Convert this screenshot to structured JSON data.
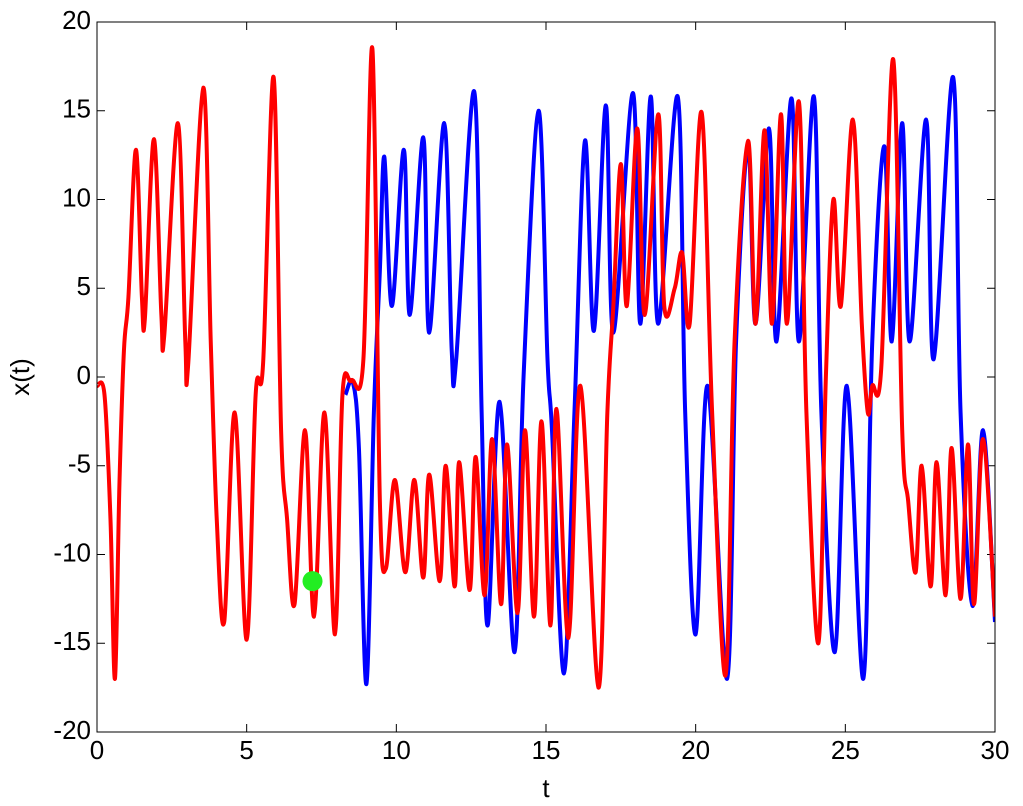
{
  "chart_data": {
    "type": "line",
    "xlabel": "t",
    "ylabel": "x(t)",
    "xlim": [
      0,
      30
    ],
    "ylim": [
      -20,
      20
    ],
    "xticks": [
      0,
      5,
      10,
      15,
      20,
      25,
      30
    ],
    "yticks": [
      -20,
      -15,
      -10,
      -5,
      0,
      5,
      10,
      15,
      20
    ],
    "series": [
      {
        "color": "#0000ff",
        "x": [
          8.3,
          8.55,
          8.75,
          9.0,
          9.25,
          9.45,
          9.6,
          9.85,
          10.25,
          10.45,
          10.9,
          11.1,
          11.6,
          11.85,
          12.0,
          12.6,
          12.85,
          13.05,
          13.45,
          13.95,
          14.25,
          14.75,
          15.05,
          15.2,
          15.6,
          15.95,
          16.3,
          16.6,
          17.0,
          17.25,
          17.9,
          18.15,
          18.5,
          18.75,
          19.4,
          19.65,
          20.0,
          20.4,
          21.05,
          21.35,
          21.75,
          22.0,
          22.45,
          22.7,
          23.2,
          23.45,
          23.95,
          24.2,
          24.65,
          25.05,
          25.6,
          25.9,
          26.3,
          26.55,
          26.9,
          27.15,
          27.7,
          27.95,
          28.6,
          28.85,
          29.25,
          29.6,
          30
        ],
        "values": [
          -1,
          -0.3,
          -4,
          -17.3,
          -2,
          6,
          12.4,
          4,
          12.8,
          3.5,
          13.5,
          2.5,
          14.3,
          1.5,
          1,
          16.1,
          -2,
          -14,
          -1.4,
          -15.5,
          0,
          15,
          1,
          -3,
          -16.7,
          -2,
          13.3,
          2.6,
          15.3,
          2.5,
          16,
          3,
          15.8,
          3,
          15.8,
          -2,
          -14.5,
          -0.5,
          -17,
          2,
          13,
          3,
          14,
          2,
          15.7,
          2,
          15.8,
          -2,
          -15.5,
          -0.5,
          -17,
          2,
          13,
          2,
          14.3,
          2,
          14.5,
          1,
          16.9,
          -2,
          -12.9,
          -3,
          -13.8
        ]
      },
      {
        "color": "#ff0000",
        "x": [
          0,
          0.25,
          0.45,
          0.6,
          0.75,
          0.9,
          1.05,
          1.3,
          1.5,
          1.6,
          1.9,
          2.15,
          2.25,
          2.7,
          2.95,
          3.05,
          3.55,
          3.8,
          4.0,
          4.25,
          4.6,
          5.0,
          5.3,
          5.55,
          5.9,
          6.15,
          6.35,
          6.6,
          6.95,
          7.25,
          7.6,
          7.95,
          8.2,
          8.5,
          8.9,
          9.2,
          9.45,
          9.65,
          9.95,
          10.3,
          10.6,
          10.9,
          11.1,
          11.45,
          11.65,
          11.95,
          12.1,
          12.45,
          12.65,
          12.95,
          13.2,
          13.5,
          13.7,
          14.05,
          14.3,
          14.6,
          14.85,
          15.15,
          15.35,
          15.75,
          16.15,
          16.75,
          17.05,
          17.25,
          17.5,
          17.7,
          18.05,
          18.3,
          18.75,
          18.95,
          19.3,
          19.55,
          19.8,
          20.2,
          20.55,
          21.0,
          21.3,
          21.75,
          22.0,
          22.3,
          22.55,
          22.85,
          23.05,
          23.45,
          23.7,
          24.1,
          24.35,
          24.6,
          24.85,
          25.25,
          25.55,
          25.75,
          25.9,
          26.2,
          26.6,
          26.9,
          27.1,
          27.35,
          27.55,
          27.85,
          28.05,
          28.35,
          28.55,
          28.85,
          29.1,
          29.3,
          29.6,
          30
        ],
        "values": [
          -0.5,
          -1,
          -8,
          -17,
          -6,
          1.5,
          4.5,
          12.8,
          4.5,
          3.3,
          13.4,
          3.5,
          2.4,
          14.3,
          2,
          0.8,
          16.3,
          2,
          -8,
          -13.8,
          -2,
          -14.8,
          -1,
          0.8,
          16.9,
          -3,
          -8,
          -12.8,
          -3,
          -13.5,
          -2,
          -14.5,
          -1,
          -0.2,
          1,
          18.5,
          -7,
          -10.8,
          -5.8,
          -11,
          -5.8,
          -11.3,
          -5.5,
          -11.5,
          -5,
          -11.8,
          -4.8,
          -12,
          -4.5,
          -12.3,
          -3.5,
          -12.8,
          -3.8,
          -13.3,
          -3,
          -13.5,
          -2.5,
          -14,
          -1.8,
          -14.7,
          -0.5,
          -17.5,
          -2,
          4,
          12,
          4,
          14,
          3.5,
          14.8,
          4,
          5,
          7,
          3,
          14.9,
          -2,
          -16.8,
          2,
          13.3,
          3,
          13.9,
          3,
          14.8,
          3,
          15.5,
          -2,
          -15,
          0,
          10,
          4,
          14.5,
          3,
          -2,
          -0.5,
          0.5,
          17.9,
          -3,
          -7,
          -11,
          -5,
          -11.8,
          -4.8,
          -12.3,
          -4,
          -12.5,
          -3.8,
          -12.8,
          -3.5,
          -13.5
        ]
      }
    ],
    "points": [
      {
        "x": 7.2,
        "y": -11.5,
        "color": "#22ee22"
      }
    ]
  }
}
